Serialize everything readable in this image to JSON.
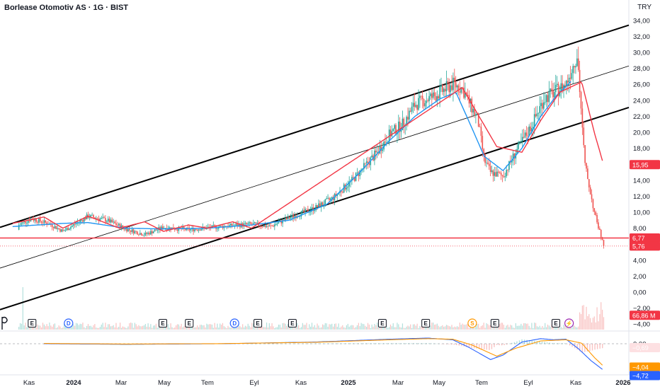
{
  "header": {
    "title": "Borlease Otomotiv AS · 1G · BIST",
    "currency": "TRY"
  },
  "colors": {
    "up": "#26a69a",
    "down": "#ef5350",
    "ma_fast": "#2196f3",
    "ma_slow": "#f23645",
    "channel": "#000000",
    "support": "#f23645"
  },
  "chart_data": {
    "type": "candlestick",
    "price_axis": {
      "labels": [
        "34,00",
        "32,00",
        "30,00",
        "28,00",
        "26,00",
        "24,00",
        "22,00",
        "20,00",
        "18,00",
        "16,00",
        "14,00",
        "12,00",
        "10,00",
        "8,00",
        "4,00",
        "2,00",
        "0,00",
        "−2,00",
        "−4,00"
      ],
      "values": [
        34,
        32,
        30,
        28,
        26,
        24,
        22,
        20,
        18,
        16,
        14,
        12,
        10,
        8,
        4,
        2,
        0,
        -2,
        -4
      ],
      "range": [
        -4.3,
        34.8
      ]
    },
    "x_axis": {
      "labels": [
        "Kas",
        "2024",
        "Mar",
        "May",
        "Tem",
        "Eyl",
        "Kas",
        "2025",
        "Mar",
        "May",
        "Tem",
        "Eyl",
        "Kas",
        "2026"
      ],
      "bold": [
        false,
        true,
        false,
        false,
        false,
        false,
        false,
        true,
        false,
        false,
        false,
        false,
        false,
        true
      ]
    },
    "price_keypoints": [
      [
        0,
        7.8
      ],
      [
        0.012,
        9.5
      ],
      [
        0.02,
        8.0
      ],
      [
        0.05,
        9.2
      ],
      [
        0.08,
        8.5
      ],
      [
        0.1,
        7.6
      ],
      [
        0.14,
        9.5
      ],
      [
        0.17,
        9.0
      ],
      [
        0.2,
        7.9
      ],
      [
        0.23,
        7.2
      ],
      [
        0.26,
        8.1
      ],
      [
        0.3,
        7.8
      ],
      [
        0.35,
        8.2
      ],
      [
        0.4,
        8.5
      ],
      [
        0.43,
        8.2
      ],
      [
        0.46,
        9.3
      ],
      [
        0.5,
        10.5
      ],
      [
        0.53,
        11.8
      ],
      [
        0.56,
        14.0
      ],
      [
        0.6,
        17.5
      ],
      [
        0.62,
        19.8
      ],
      [
        0.64,
        21.0
      ],
      [
        0.66,
        23.5
      ],
      [
        0.69,
        24.5
      ],
      [
        0.72,
        26.0
      ],
      [
        0.735,
        25.5
      ],
      [
        0.76,
        21.5
      ],
      [
        0.77,
        16.5
      ],
      [
        0.78,
        15.0
      ],
      [
        0.8,
        14.5
      ],
      [
        0.82,
        17.5
      ],
      [
        0.845,
        20.8
      ],
      [
        0.865,
        24.2
      ],
      [
        0.885,
        25.2
      ],
      [
        0.9,
        26.0
      ],
      [
        0.918,
        29.8
      ],
      [
        0.93,
        16.0
      ],
      [
        0.945,
        10.0
      ],
      [
        0.96,
        5.8
      ]
    ],
    "ma_fast_keypoints": [
      [
        0.02,
        8.2
      ],
      [
        0.1,
        8.6
      ],
      [
        0.14,
        8.7
      ],
      [
        0.2,
        8.0
      ],
      [
        0.26,
        7.9
      ],
      [
        0.33,
        8.0
      ],
      [
        0.4,
        8.4
      ],
      [
        0.46,
        9.0
      ],
      [
        0.52,
        11.0
      ],
      [
        0.57,
        14.8
      ],
      [
        0.62,
        19.0
      ],
      [
        0.66,
        22.0
      ],
      [
        0.7,
        24.2
      ],
      [
        0.725,
        25.0
      ],
      [
        0.745,
        21.5
      ],
      [
        0.77,
        17.0
      ],
      [
        0.8,
        15.2
      ],
      [
        0.83,
        18.0
      ],
      [
        0.86,
        22.0
      ],
      [
        0.885,
        24.6
      ],
      [
        0.91,
        26.5
      ]
    ],
    "ma_slow_keypoints": [
      [
        0.02,
        8.6
      ],
      [
        0.07,
        9.4
      ],
      [
        0.1,
        8.0
      ],
      [
        0.14,
        9.5
      ],
      [
        0.19,
        8.0
      ],
      [
        0.23,
        8.8
      ],
      [
        0.26,
        7.6
      ],
      [
        0.3,
        8.4
      ],
      [
        0.33,
        8.0
      ],
      [
        0.37,
        8.8
      ],
      [
        0.4,
        8.0
      ],
      [
        0.735,
        25.6
      ],
      [
        0.79,
        18.2
      ],
      [
        0.83,
        17.5
      ],
      [
        0.86,
        21.5
      ],
      [
        0.89,
        25.0
      ],
      [
        0.925,
        26.3
      ],
      [
        0.945,
        20.0
      ],
      [
        0.96,
        15.9
      ]
    ],
    "channel_lines": [
      {
        "name": "upper",
        "from": [
          0,
          8.1
        ],
        "to": [
          1,
          33.4
        ]
      },
      {
        "name": "middle",
        "from": [
          0,
          3.0
        ],
        "to": [
          1,
          28.3
        ]
      },
      {
        "name": "lower",
        "from": [
          0,
          -2.2
        ],
        "to": [
          1,
          23.1
        ]
      }
    ],
    "horizontal_lines": [
      {
        "name": "resistance",
        "value": 6.77,
        "style": "solid"
      },
      {
        "name": "current-price",
        "value": 5.76,
        "style": "dotted"
      }
    ],
    "price_badges": [
      {
        "label": "15,95",
        "value": 15.95,
        "color": "#f23645"
      },
      {
        "label": "6,77",
        "value": 6.77,
        "color": "#f23645"
      },
      {
        "label": "5,76",
        "value": 5.76,
        "color": "#f23645"
      },
      {
        "label": "66,86 M",
        "value": -2.9,
        "color": "#f23645"
      }
    ],
    "event_markers": [
      {
        "type": "E",
        "x": 0.051
      },
      {
        "type": "D",
        "x": 0.109
      },
      {
        "type": "E",
        "x": 0.259
      },
      {
        "type": "E",
        "x": 0.301
      },
      {
        "type": "D",
        "x": 0.373
      },
      {
        "type": "E",
        "x": 0.41
      },
      {
        "type": "E",
        "x": 0.465
      },
      {
        "type": "E",
        "x": 0.608
      },
      {
        "type": "E",
        "x": 0.677
      },
      {
        "type": "S",
        "x": 0.751
      },
      {
        "type": "E",
        "x": 0.787
      },
      {
        "type": "E",
        "x": 0.884
      },
      {
        "type": "⚡",
        "x": 0.905
      }
    ],
    "macd": {
      "zero_label": "0,00",
      "labels": [
        "0,00",
        "−0,69",
        "−4,04",
        "−4,72"
      ],
      "values": [
        0,
        -0.69,
        -4.04,
        -4.72
      ],
      "macd_keypoints": [
        [
          0.07,
          0.0
        ],
        [
          0.2,
          -0.1
        ],
        [
          0.35,
          0.0
        ],
        [
          0.5,
          0.3
        ],
        [
          0.62,
          0.8
        ],
        [
          0.68,
          1.0
        ],
        [
          0.72,
          0.7
        ],
        [
          0.745,
          -0.6
        ],
        [
          0.78,
          -2.8
        ],
        [
          0.8,
          -2.0
        ],
        [
          0.83,
          0.3
        ],
        [
          0.86,
          0.9
        ],
        [
          0.88,
          0.7
        ],
        [
          0.9,
          0.8
        ],
        [
          0.92,
          -0.9
        ],
        [
          0.94,
          -3.0
        ],
        [
          0.96,
          -4.7
        ]
      ],
      "signal_keypoints": [
        [
          0.07,
          0.05
        ],
        [
          0.2,
          -0.05
        ],
        [
          0.35,
          0.02
        ],
        [
          0.5,
          0.25
        ],
        [
          0.62,
          0.7
        ],
        [
          0.68,
          0.9
        ],
        [
          0.72,
          0.8
        ],
        [
          0.75,
          -0.2
        ],
        [
          0.79,
          -2.2
        ],
        [
          0.82,
          -0.8
        ],
        [
          0.86,
          0.5
        ],
        [
          0.9,
          0.7
        ],
        [
          0.925,
          0.1
        ],
        [
          0.945,
          -2.4
        ],
        [
          0.96,
          -4.0
        ]
      ]
    }
  }
}
